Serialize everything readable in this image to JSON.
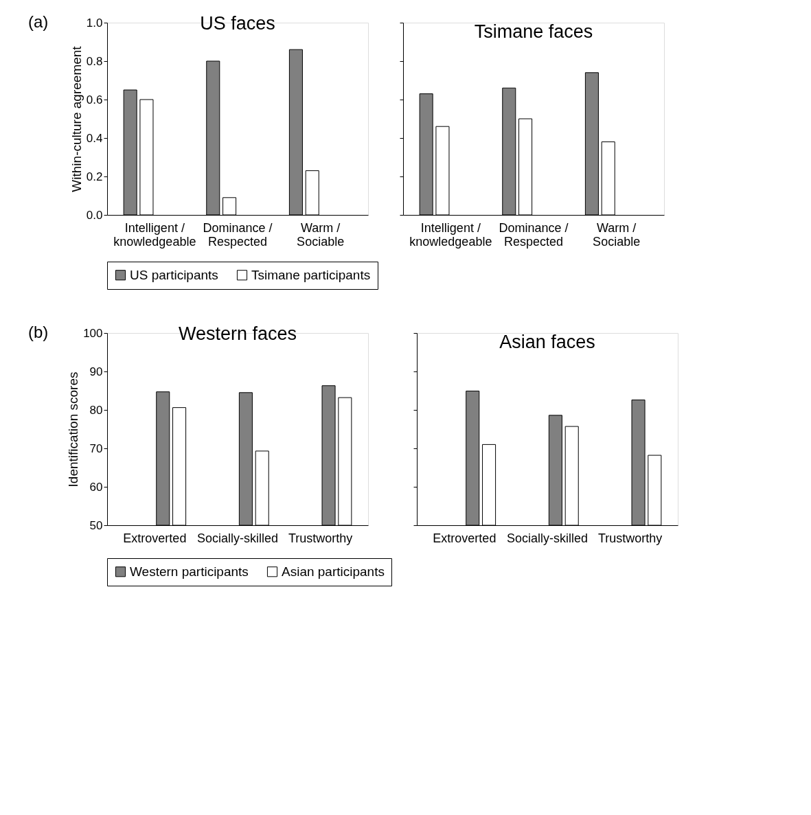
{
  "chart_data": [
    {
      "type": "bar",
      "title": "US faces",
      "ylabel": "Within-culture agreement",
      "annotations": [
        "(a)"
      ],
      "categories": [
        "Intelligent /\nknowledgeable",
        "Dominance /\nRespected",
        "Warm /\nSociable"
      ],
      "ylim": [
        0,
        1
      ],
      "yticks": [
        {
          "value": 0,
          "label": "0.0"
        },
        0.2,
        0.4,
        0.6,
        0.8,
        {
          "value": 1,
          "label": "1.0"
        }
      ],
      "grid": false,
      "legend": "bottom",
      "series": [
        {
          "name": "US participants",
          "color": "#808080",
          "values": [
            0.65,
            0.8,
            0.86
          ]
        },
        {
          "name": "Tsimane participants",
          "color": "#ffffff",
          "values": [
            0.6,
            0.09,
            0.23
          ]
        }
      ]
    },
    {
      "type": "bar",
      "title": "Tsimane faces",
      "categories": [
        "Intelligent /\nknowledgeable",
        "Dominance /\nRespected",
        "Warm /\nSociable"
      ],
      "ylim": [
        0,
        1
      ],
      "yticks": [
        {
          "value": 0,
          "label": null
        },
        {
          "value": 0.2,
          "label": null
        },
        {
          "value": 0.4,
          "label": null
        },
        {
          "value": 0.6,
          "label": null
        },
        {
          "value": 0.8,
          "label": null
        },
        {
          "value": 1,
          "label": null
        }
      ],
      "grid": false,
      "tick_labels": "x",
      "legend": "bottom",
      "series": [
        {
          "name": "US participants",
          "color": "#808080",
          "values": [
            0.63,
            0.66,
            0.74
          ]
        },
        {
          "name": "Tsimane participants",
          "color": "#ffffff",
          "values": [
            0.46,
            0.5,
            0.38
          ]
        }
      ]
    },
    {
      "type": "bar",
      "title": "Western faces",
      "ylabel": "Identification scores",
      "annotations": [
        "(b)"
      ],
      "categories": [
        "Extroverted",
        "Socially-skilled",
        "Trustworthy"
      ],
      "ylim": [
        50,
        100
      ],
      "yticks": [
        50,
        60,
        70,
        80,
        90,
        100
      ],
      "grid": false,
      "legend": "bottom",
      "series": [
        {
          "name": "Western participants",
          "color": "#808080",
          "values": [
            84.7,
            84.5,
            86.3
          ]
        },
        {
          "name": "Asian participants",
          "color": "#ffffff",
          "values": [
            80.6,
            69.3,
            83.2
          ]
        }
      ]
    },
    {
      "type": "bar",
      "title": "Asian faces",
      "categories": [
        "Extroverted",
        "Socially-skilled",
        "Trustworthy"
      ],
      "ylim": [
        50,
        100
      ],
      "yticks": [
        {
          "value": 50,
          "label": null
        },
        {
          "value": 60,
          "label": null
        },
        {
          "value": 70,
          "label": null
        },
        {
          "value": 80,
          "label": null
        },
        {
          "value": 90,
          "label": null
        },
        {
          "value": 100,
          "label": null
        }
      ],
      "grid": false,
      "tick_labels": "x",
      "legend": "bottom",
      "series": [
        {
          "name": "Western participants",
          "color": "#808080",
          "values": [
            84.9,
            78.6,
            82.6
          ]
        },
        {
          "name": "Asian participants",
          "color": "#ffffff",
          "values": [
            71.0,
            75.7,
            68.2
          ]
        }
      ]
    }
  ]
}
